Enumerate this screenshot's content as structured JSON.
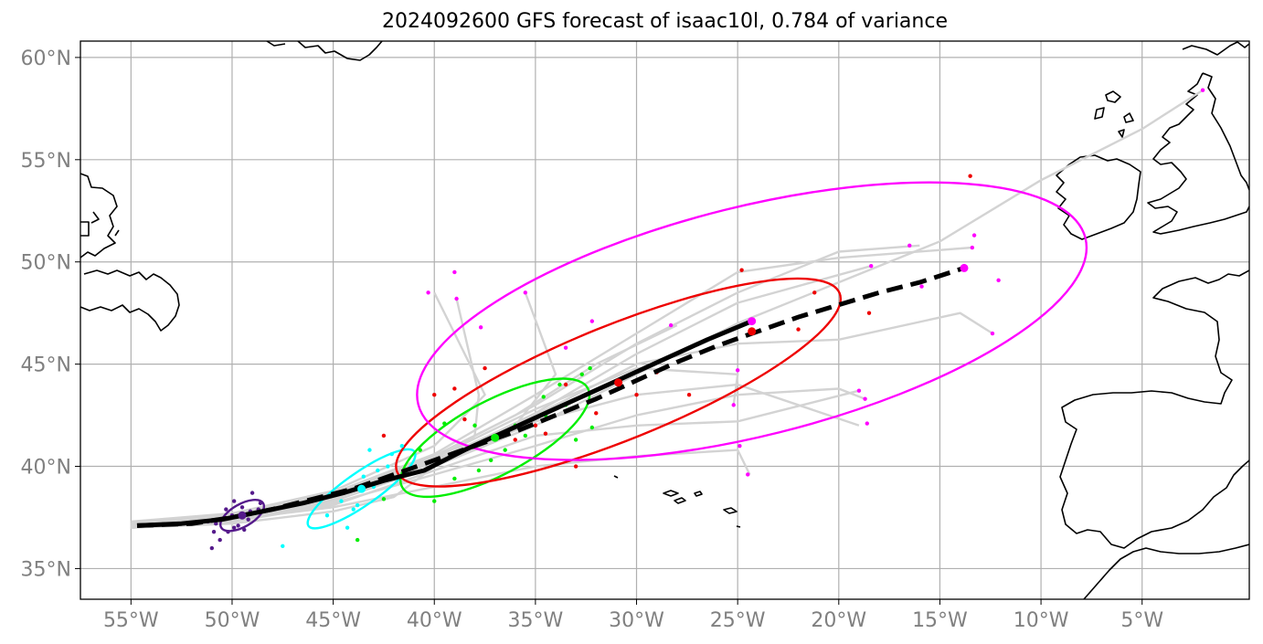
{
  "title": "2024092600 GFS forecast of isaac10l, 0.784 of variance",
  "chart_data": {
    "type": "map",
    "projection": "plate-carree",
    "lon_range": [
      -57.5,
      0.3
    ],
    "lat_range": [
      33.5,
      60.8
    ],
    "grid": true,
    "x_ticks": [
      {
        "lon": -55,
        "label": "55°W"
      },
      {
        "lon": -50,
        "label": "50°W"
      },
      {
        "lon": -45,
        "label": "45°W"
      },
      {
        "lon": -40,
        "label": "40°W"
      },
      {
        "lon": -35,
        "label": "35°W"
      },
      {
        "lon": -30,
        "label": "30°W"
      },
      {
        "lon": -25,
        "label": "25°W"
      },
      {
        "lon": -20,
        "label": "20°W"
      },
      {
        "lon": -15,
        "label": "15°W"
      },
      {
        "lon": -10,
        "label": "10°W"
      },
      {
        "lon": -5,
        "label": "5°W"
      }
    ],
    "y_ticks": [
      {
        "lat": 35,
        "label": "35°N"
      },
      {
        "lat": 40,
        "label": "40°N"
      },
      {
        "lat": 45,
        "label": "45°N"
      },
      {
        "lat": 50,
        "label": "50°N"
      },
      {
        "lat": 55,
        "label": "55°N"
      },
      {
        "lat": 60,
        "label": "60°N"
      }
    ],
    "colors": {
      "mean_track": "#000000",
      "ensemble_tracks": "#d3d3d3",
      "purple": "#551a8b",
      "cyan": "#00ffff",
      "green": "#00ee00",
      "red": "#ee0000",
      "magenta": "#ff00ff",
      "coast": "#000000",
      "grid": "#b0b0b0"
    },
    "solid_track": [
      [
        -54.7,
        37.1
      ],
      [
        -52.5,
        37.2
      ],
      [
        -50.5,
        37.4
      ],
      [
        -48.5,
        37.8
      ],
      [
        -46.5,
        38.2
      ],
      [
        -44.5,
        38.7
      ],
      [
        -42.5,
        39.3
      ],
      [
        -40.5,
        39.8
      ],
      [
        -38.5,
        40.8
      ],
      [
        -36.5,
        41.7
      ],
      [
        -34.5,
        42.6
      ],
      [
        -32.5,
        43.5
      ],
      [
        -30.5,
        44.4
      ],
      [
        -28.5,
        45.3
      ],
      [
        -26.5,
        46.2
      ],
      [
        -24.3,
        47.1
      ]
    ],
    "dashed_track": [
      [
        -54.7,
        37.1
      ],
      [
        -52,
        37.2
      ],
      [
        -50,
        37.5
      ],
      [
        -48,
        37.9
      ],
      [
        -46,
        38.4
      ],
      [
        -44,
        38.9
      ],
      [
        -42,
        39.6
      ],
      [
        -40,
        40.3
      ],
      [
        -38,
        41.0
      ],
      [
        -36,
        41.7
      ],
      [
        -34,
        42.5
      ],
      [
        -32,
        43.3
      ],
      [
        -30,
        44.2
      ],
      [
        -28,
        45.1
      ],
      [
        -26,
        45.9
      ],
      [
        -24,
        46.6
      ],
      [
        -22,
        47.3
      ],
      [
        -20,
        47.9
      ],
      [
        -18,
        48.5
      ],
      [
        -16,
        49.0
      ],
      [
        -13.8,
        49.7
      ]
    ],
    "ensemble_tracks": [
      [
        [
          -55,
          37.0
        ],
        [
          -50,
          37.5
        ],
        [
          -45,
          38.5
        ],
        [
          -40,
          40.0
        ],
        [
          -35,
          42.0
        ],
        [
          -30,
          44.5
        ],
        [
          -25,
          47.0
        ],
        [
          -20,
          49.0
        ],
        [
          -15,
          51.0
        ],
        [
          -10,
          54.0
        ],
        [
          -5,
          56.5
        ],
        [
          -2,
          58.4
        ]
      ],
      [
        [
          -55,
          37.2
        ],
        [
          -50,
          37.6
        ],
        [
          -45,
          38.6
        ],
        [
          -40,
          40.5
        ],
        [
          -35,
          43.0
        ],
        [
          -30,
          46.0
        ],
        [
          -25,
          48.5
        ],
        [
          -20,
          50.5
        ],
        [
          -16,
          50.8
        ]
      ],
      [
        [
          -55,
          37.0
        ],
        [
          -50,
          37.3
        ],
        [
          -45,
          38.2
        ],
        [
          -40,
          39.6
        ],
        [
          -35,
          41.0
        ],
        [
          -30,
          42.5
        ],
        [
          -25,
          43.5
        ],
        [
          -20,
          43.8
        ],
        [
          -18.7,
          43.3
        ]
      ],
      [
        [
          -55,
          37.1
        ],
        [
          -50,
          37.4
        ],
        [
          -45,
          38.0
        ],
        [
          -40,
          39.0
        ],
        [
          -35,
          40.0
        ],
        [
          -30,
          40.5
        ],
        [
          -25,
          40.8
        ],
        [
          -24.4,
          39.6
        ]
      ],
      [
        [
          -55,
          37.0
        ],
        [
          -50,
          37.2
        ],
        [
          -45,
          37.8
        ],
        [
          -42,
          38.5
        ],
        [
          -38,
          41.5
        ],
        [
          -37.8,
          43.5
        ],
        [
          -38.9,
          48.2
        ]
      ],
      [
        [
          -55,
          37.3
        ],
        [
          -50,
          37.7
        ],
        [
          -45,
          38.8
        ],
        [
          -40,
          41.0
        ],
        [
          -37.5,
          43.5
        ],
        [
          -39,
          46.5
        ],
        [
          -40,
          48.5
        ]
      ],
      [
        [
          -55,
          37.1
        ],
        [
          -50,
          37.5
        ],
        [
          -45,
          38.4
        ],
        [
          -40,
          40.2
        ],
        [
          -36,
          42.0
        ],
        [
          -34,
          44.5
        ],
        [
          -35.5,
          48.5
        ]
      ],
      [
        [
          -55,
          37.0
        ],
        [
          -50,
          37.4
        ],
        [
          -45,
          38.3
        ],
        [
          -40,
          40.0
        ],
        [
          -35,
          42.2
        ],
        [
          -30,
          43.5
        ],
        [
          -25,
          44.0
        ],
        [
          -19,
          42.0
        ]
      ],
      [
        [
          -55,
          37.2
        ],
        [
          -50,
          37.6
        ],
        [
          -45,
          38.7
        ],
        [
          -40,
          40.6
        ],
        [
          -35,
          43.5
        ],
        [
          -30,
          46.5
        ],
        [
          -25,
          49.5
        ],
        [
          -20,
          50.2
        ],
        [
          -13.4,
          50.7
        ]
      ],
      [
        [
          -55,
          37.0
        ],
        [
          -50,
          37.4
        ],
        [
          -45,
          38.4
        ],
        [
          -40,
          40.3
        ],
        [
          -35,
          42.5
        ],
        [
          -30,
          45.0
        ],
        [
          -25,
          46.0
        ],
        [
          -20,
          46.2
        ],
        [
          -14,
          47.5
        ],
        [
          -12.4,
          46.5
        ]
      ],
      [
        [
          -55,
          37.1
        ],
        [
          -50,
          37.5
        ],
        [
          -45,
          38.5
        ],
        [
          -40,
          40.4
        ],
        [
          -35,
          42.8
        ],
        [
          -30,
          44.8
        ],
        [
          -25,
          44.5
        ],
        [
          -25.2,
          43.0
        ]
      ],
      [
        [
          -55,
          37.2
        ],
        [
          -50,
          37.6
        ],
        [
          -45,
          38.6
        ],
        [
          -40,
          40.5
        ],
        [
          -36,
          42.5
        ],
        [
          -32,
          45.0
        ],
        [
          -28,
          46.9
        ]
      ],
      [
        [
          -55,
          37.0
        ],
        [
          -50,
          37.3
        ],
        [
          -45,
          38.1
        ],
        [
          -40,
          39.8
        ],
        [
          -35,
          41.5
        ],
        [
          -30,
          42.0
        ],
        [
          -25,
          42.2
        ],
        [
          -19,
          43.7
        ]
      ],
      [
        [
          -55,
          37.1
        ],
        [
          -50,
          37.5
        ],
        [
          -45,
          38.5
        ],
        [
          -40,
          40.2
        ],
        [
          -35,
          42.6
        ],
        [
          -30,
          45.5
        ],
        [
          -25,
          48.0
        ],
        [
          -18.4,
          49.8
        ]
      ]
    ],
    "clusters": [
      {
        "color": "purple",
        "center": [
          -49.5,
          37.6
        ],
        "ellipse": {
          "rx": 1.2,
          "ry": 0.55,
          "angle": 30
        },
        "points": [
          [
            -51,
            36.0
          ],
          [
            -50.6,
            36.4
          ],
          [
            -50.2,
            36.8
          ],
          [
            -50.8,
            37.2
          ],
          [
            -49.9,
            37.0
          ],
          [
            -49.4,
            36.9
          ],
          [
            -49.2,
            37.4
          ],
          [
            -48.7,
            37.9
          ],
          [
            -48.6,
            38.2
          ],
          [
            -49.5,
            38.0
          ],
          [
            -50,
            37.6
          ],
          [
            -51.2,
            37.3
          ],
          [
            -49.0,
            38.7
          ],
          [
            -50.3,
            37.9
          ],
          [
            -49.7,
            37.1
          ],
          [
            -49.1,
            37.8
          ],
          [
            -50.9,
            36.8
          ],
          [
            -49.9,
            38.3
          ]
        ]
      },
      {
        "color": "cyan",
        "center": [
          -43.6,
          38.9
        ],
        "ellipse": {
          "rx": 3.2,
          "ry": 0.8,
          "angle": 35
        },
        "points": [
          [
            -47.5,
            36.1
          ],
          [
            -45.3,
            37.6
          ],
          [
            -44.3,
            37.0
          ],
          [
            -43.8,
            38.1
          ],
          [
            -43.0,
            39.0
          ],
          [
            -42.3,
            40.0
          ],
          [
            -42.1,
            40.6
          ],
          [
            -41.6,
            41.0
          ],
          [
            -44.6,
            38.3
          ],
          [
            -43.5,
            39.5
          ],
          [
            -45.0,
            38.7
          ],
          [
            -42.8,
            39.8
          ],
          [
            -44.0,
            37.9
          ],
          [
            -43.2,
            40.8
          ]
        ]
      },
      {
        "color": "green",
        "center": [
          -37.0,
          41.4
        ],
        "ellipse": {
          "rx": 5.2,
          "ry": 1.8,
          "angle": 28
        },
        "points": [
          [
            -43.8,
            36.4
          ],
          [
            -42.5,
            38.4
          ],
          [
            -40.0,
            38.3
          ],
          [
            -39.0,
            39.4
          ],
          [
            -37.8,
            39.8
          ],
          [
            -36.5,
            40.8
          ],
          [
            -35.5,
            41.5
          ],
          [
            -34.5,
            42.5
          ],
          [
            -33.5,
            43.0
          ],
          [
            -32.7,
            44.5
          ],
          [
            -32.3,
            44.8
          ],
          [
            -33.0,
            41.3
          ],
          [
            -32.2,
            41.9
          ],
          [
            -38.0,
            42.0
          ],
          [
            -36.0,
            42.0
          ],
          [
            -34.6,
            43.4
          ],
          [
            -40.7,
            40.8
          ],
          [
            -39.5,
            42.1
          ],
          [
            -37.2,
            40.3
          ],
          [
            -33.8,
            44.0
          ]
        ]
      },
      {
        "color": "red",
        "center": [
          -30.9,
          44.1
        ],
        "ellipse": {
          "rx": 11.8,
          "ry": 2.8,
          "angle": 22
        },
        "points": [
          [
            -42.5,
            41.5
          ],
          [
            -40.0,
            43.5
          ],
          [
            -39.0,
            43.8
          ],
          [
            -37.5,
            44.8
          ],
          [
            -36.0,
            41.3
          ],
          [
            -34.5,
            41.6
          ],
          [
            -33.0,
            40.0
          ],
          [
            -32.0,
            42.6
          ],
          [
            -29.0,
            44.6
          ],
          [
            -27.4,
            43.5
          ],
          [
            -24.2,
            46.6
          ],
          [
            -22.0,
            46.7
          ],
          [
            -21.2,
            48.5
          ],
          [
            -18.5,
            47.5
          ],
          [
            -13.5,
            54.2
          ],
          [
            -24.8,
            49.6
          ],
          [
            -33.5,
            44.0
          ],
          [
            -35.0,
            42.0
          ],
          [
            -30.0,
            43.5
          ],
          [
            -38.5,
            42.3
          ]
        ]
      },
      {
        "color": "magenta",
        "center": [
          -24.3,
          47.1
        ],
        "ellipse": {
          "rx": 17.0,
          "ry": 5.6,
          "angle": 14
        },
        "points": [
          [
            -40.3,
            48.5
          ],
          [
            -39.0,
            49.5
          ],
          [
            -38.9,
            48.2
          ],
          [
            -37.7,
            46.8
          ],
          [
            -35.5,
            48.5
          ],
          [
            -33.5,
            45.8
          ],
          [
            -32.2,
            47.1
          ],
          [
            -28.3,
            46.9
          ],
          [
            -25.0,
            44.7
          ],
          [
            -25.2,
            43.0
          ],
          [
            -24.5,
            39.6
          ],
          [
            -24.9,
            41.0
          ],
          [
            -18.4,
            49.8
          ],
          [
            -16.5,
            50.8
          ],
          [
            -15.9,
            48.8
          ],
          [
            -13.4,
            50.7
          ],
          [
            -13.3,
            51.3
          ],
          [
            -12.1,
            49.1
          ],
          [
            -12.4,
            46.5
          ],
          [
            -18.7,
            43.3
          ],
          [
            -19.0,
            43.7
          ],
          [
            -18.6,
            42.1
          ],
          [
            -2.0,
            58.4
          ],
          [
            -13.8,
            49.7
          ]
        ]
      }
    ]
  }
}
